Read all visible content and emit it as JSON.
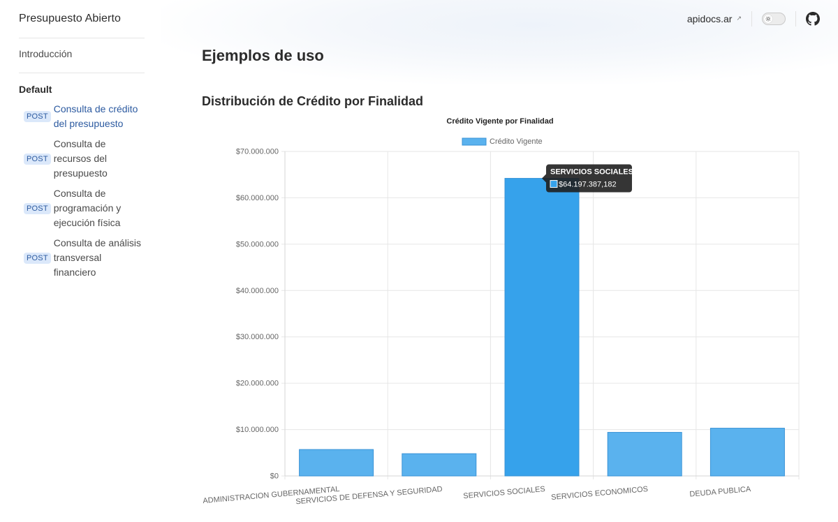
{
  "header": {
    "brand": "Presupuesto Abierto",
    "ext_link": "apidocs.ar",
    "ext_arrow": "↗"
  },
  "sidebar": {
    "intro": "Introducción",
    "group": "Default",
    "items": [
      {
        "method": "POST",
        "label": "Consulta de crédito del presupuesto",
        "active": true
      },
      {
        "method": "POST",
        "label": "Consulta de recursos del presupuesto",
        "active": false
      },
      {
        "method": "POST",
        "label": "Consulta de programación y ejecución física",
        "active": false
      },
      {
        "method": "POST",
        "label": "Consulta de análisis transversal financiero",
        "active": false
      }
    ]
  },
  "main": {
    "title": "Ejemplos de uso",
    "section_title": "Distribución de Crédito por Finalidad"
  },
  "colors": {
    "bar": "#5ab2ee",
    "bar_highlight": "#36a2eb",
    "bar_border": "#3a93d6",
    "tooltip_bg": "#1f1f1f",
    "link_active": "#2c5aa0"
  },
  "chart_data": {
    "type": "bar",
    "title": "Crédito Vigente por Finalidad",
    "legend": "top",
    "grid": true,
    "categories": [
      "ADMINISTRACION GUBERNAMENTAL",
      "SERVICIOS DE DEFENSA Y SEGURIDAD",
      "SERVICIOS SOCIALES",
      "SERVICIOS ECONOMICOS",
      "DEUDA PUBLICA"
    ],
    "series": [
      {
        "name": "Crédito Vigente",
        "values": [
          5700000,
          4800000,
          64197387.182,
          9400000,
          10300000
        ]
      }
    ],
    "ylim": [
      0,
      70000000
    ],
    "yticks": [
      0,
      10000000,
      20000000,
      30000000,
      40000000,
      50000000,
      60000000,
      70000000
    ],
    "ytick_labels": [
      "$0",
      "$10.000.000",
      "$20.000.000",
      "$30.000.000",
      "$40.000.000",
      "$50.000.000",
      "$60.000.000",
      "$70.000.000"
    ],
    "highlighted_index": 2,
    "tooltip": {
      "title": "SERVICIOS SOCIALES",
      "value": "$64.197.387,182"
    }
  }
}
